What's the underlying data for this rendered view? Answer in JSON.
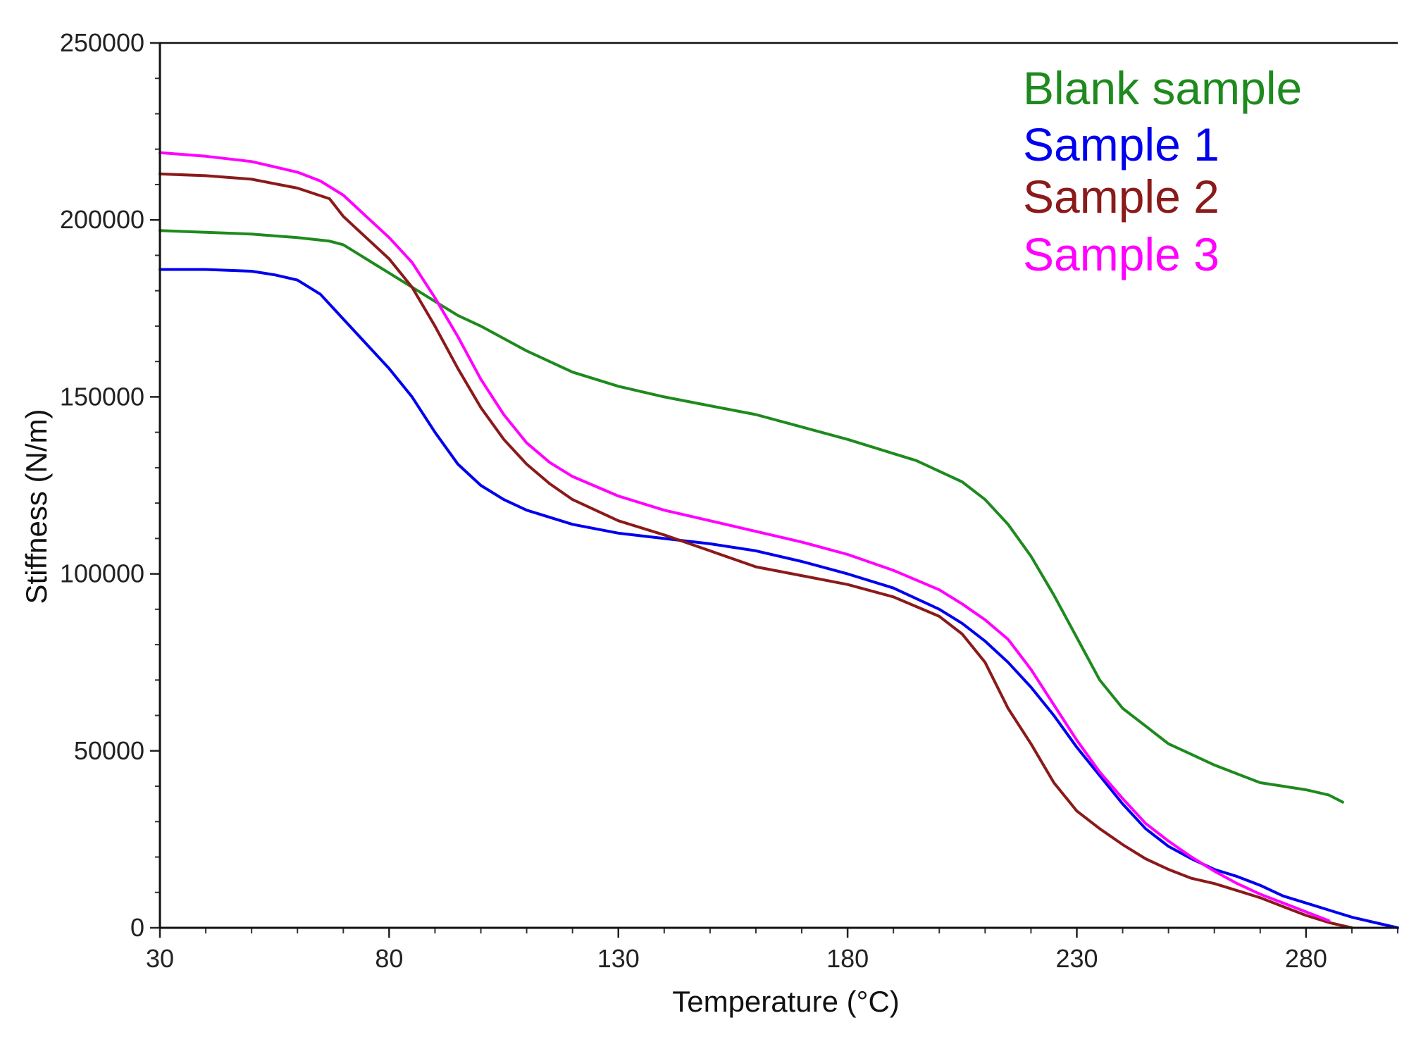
{
  "chart_data": {
    "type": "line",
    "title": "",
    "xlabel": "Temperature (°C)",
    "ylabel": "Stiffness (N/m)",
    "xlim": [
      30,
      300
    ],
    "ylim": [
      0,
      250000
    ],
    "xticks": [
      30,
      80,
      130,
      180,
      230,
      280
    ],
    "yticks": [
      0,
      50000,
      100000,
      150000,
      200000,
      250000
    ],
    "xtick_labels": [
      "30",
      "80",
      "130",
      "180",
      "230",
      "280"
    ],
    "ytick_labels": [
      "0",
      "50000",
      "100000",
      "150000",
      "200000",
      "250000"
    ],
    "grid": false,
    "legend_position": "top-right",
    "series": [
      {
        "name": "Blank sample",
        "color": "#1e8a1e",
        "x": [
          30,
          40,
          50,
          60,
          67,
          70,
          75,
          80,
          85,
          90,
          95,
          100,
          110,
          120,
          130,
          140,
          150,
          160,
          170,
          180,
          190,
          195,
          200,
          205,
          210,
          215,
          220,
          225,
          230,
          235,
          240,
          245,
          250,
          255,
          260,
          265,
          270,
          275,
          280,
          285,
          288
        ],
        "y": [
          197000,
          196500,
          196000,
          195000,
          194000,
          193000,
          189000,
          185000,
          181000,
          177000,
          173000,
          170000,
          163000,
          157000,
          153000,
          150000,
          147500,
          145000,
          141500,
          138000,
          134000,
          132000,
          129000,
          126000,
          121000,
          114000,
          105000,
          94000,
          82000,
          70000,
          62000,
          57000,
          52000,
          49000,
          46000,
          43500,
          41000,
          40000,
          39000,
          37500,
          35500
        ]
      },
      {
        "name": "Sample 1",
        "color": "#0000ee",
        "x": [
          30,
          40,
          50,
          55,
          60,
          65,
          70,
          75,
          80,
          85,
          90,
          95,
          100,
          105,
          110,
          120,
          130,
          140,
          150,
          160,
          170,
          180,
          190,
          200,
          205,
          210,
          215,
          220,
          225,
          230,
          235,
          240,
          245,
          250,
          255,
          260,
          265,
          270,
          275,
          280,
          285,
          290,
          295,
          300
        ],
        "y": [
          186000,
          186000,
          185500,
          184500,
          183000,
          179000,
          172000,
          165000,
          158000,
          150000,
          140000,
          131000,
          125000,
          121000,
          118000,
          114000,
          111500,
          110000,
          108500,
          106500,
          103500,
          100000,
          96000,
          90000,
          86000,
          81000,
          75000,
          68000,
          60000,
          51000,
          43000,
          35000,
          28000,
          23000,
          19500,
          16500,
          14500,
          12000,
          9000,
          7000,
          5000,
          3000,
          1500,
          0
        ]
      },
      {
        "name": "Sample 2",
        "color": "#8b1a1a",
        "x": [
          30,
          40,
          50,
          60,
          67,
          70,
          75,
          80,
          85,
          90,
          95,
          100,
          105,
          110,
          115,
          120,
          130,
          140,
          150,
          160,
          170,
          180,
          190,
          200,
          205,
          210,
          215,
          220,
          225,
          230,
          235,
          240,
          245,
          250,
          255,
          260,
          265,
          270,
          275,
          280,
          285,
          290
        ],
        "y": [
          213000,
          212500,
          211500,
          209000,
          206000,
          201000,
          195000,
          189000,
          181000,
          170000,
          158000,
          147000,
          138000,
          131000,
          125500,
          121000,
          115000,
          111000,
          106500,
          102000,
          99500,
          97000,
          93500,
          88000,
          83000,
          75000,
          62000,
          52000,
          41000,
          33000,
          28000,
          23500,
          19500,
          16500,
          14000,
          12500,
          10500,
          8500,
          6000,
          3500,
          1500,
          0
        ]
      },
      {
        "name": "Sample 3",
        "color": "#ff00ff",
        "x": [
          30,
          40,
          50,
          60,
          65,
          70,
          75,
          80,
          85,
          90,
          95,
          100,
          105,
          110,
          115,
          120,
          130,
          140,
          150,
          160,
          170,
          180,
          190,
          200,
          205,
          210,
          215,
          220,
          225,
          230,
          235,
          240,
          245,
          250,
          255,
          260,
          265,
          270,
          275,
          280,
          285
        ],
        "y": [
          219000,
          218000,
          216500,
          213500,
          211000,
          207000,
          201000,
          195000,
          188000,
          178000,
          167000,
          155000,
          145000,
          137000,
          131500,
          127500,
          122000,
          118000,
          115000,
          112000,
          109000,
          105500,
          101000,
          95500,
          91500,
          87000,
          81500,
          73000,
          63000,
          53000,
          44000,
          36500,
          29500,
          24500,
          20000,
          16000,
          12500,
          9500,
          7000,
          4500,
          2000
        ]
      }
    ]
  }
}
